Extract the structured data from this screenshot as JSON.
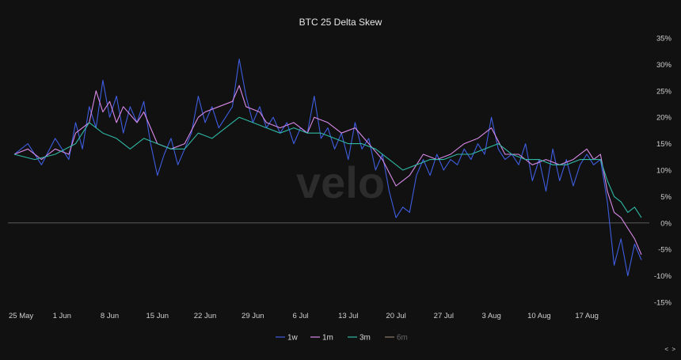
{
  "chart_data": {
    "type": "line",
    "title": "BTC 25 Delta Skew",
    "watermark": "velo",
    "xlabel": "",
    "ylabel": "",
    "ylim": [
      -15,
      35
    ],
    "y_ticks": [
      "35%",
      "30%",
      "25%",
      "20%",
      "15%",
      "10%",
      "5%",
      "0%",
      "-5%",
      "-10%",
      "-15%"
    ],
    "y_tick_values": [
      35,
      30,
      25,
      20,
      15,
      10,
      5,
      0,
      -5,
      -10,
      -15
    ],
    "x_start": "2023-05-25",
    "x_end": "2023-08-25",
    "x_ticks": [
      "25 May",
      "1 Jun",
      "8 Jun",
      "15 Jun",
      "22 Jun",
      "29 Jun",
      "6 Jul",
      "13 Jul",
      "20 Jul",
      "27 Jul",
      "3 Aug",
      "10 Aug",
      "17 Aug"
    ],
    "grid": false,
    "zero_line": true,
    "legend_position": "bottom-center",
    "nav_label": "< >",
    "colors": {
      "1w": "#3f5de0",
      "1m": "#d98ae8",
      "3m": "#2fb8a4",
      "6m": "#8a7a6a"
    },
    "series": [
      {
        "name": "1w",
        "color": "#3f5de0",
        "visible": true,
        "points": [
          [
            "2023-05-25",
            13
          ],
          [
            "2023-05-27",
            15
          ],
          [
            "2023-05-29",
            11
          ],
          [
            "2023-05-31",
            16
          ],
          [
            "2023-06-02",
            12
          ],
          [
            "2023-06-03",
            19
          ],
          [
            "2023-06-04",
            14
          ],
          [
            "2023-06-05",
            22
          ],
          [
            "2023-06-06",
            18
          ],
          [
            "2023-06-07",
            27
          ],
          [
            "2023-06-08",
            20
          ],
          [
            "2023-06-09",
            24
          ],
          [
            "2023-06-10",
            17
          ],
          [
            "2023-06-11",
            22
          ],
          [
            "2023-06-12",
            19
          ],
          [
            "2023-06-13",
            23
          ],
          [
            "2023-06-14",
            15
          ],
          [
            "2023-06-15",
            9
          ],
          [
            "2023-06-16",
            13
          ],
          [
            "2023-06-17",
            16
          ],
          [
            "2023-06-18",
            11
          ],
          [
            "2023-06-19",
            14
          ],
          [
            "2023-06-20",
            17
          ],
          [
            "2023-06-21",
            24
          ],
          [
            "2023-06-22",
            19
          ],
          [
            "2023-06-23",
            22
          ],
          [
            "2023-06-24",
            18
          ],
          [
            "2023-06-25",
            20
          ],
          [
            "2023-06-26",
            22
          ],
          [
            "2023-06-27",
            31
          ],
          [
            "2023-06-28",
            24
          ],
          [
            "2023-06-29",
            19
          ],
          [
            "2023-06-30",
            22
          ],
          [
            "2023-07-01",
            18
          ],
          [
            "2023-07-02",
            20
          ],
          [
            "2023-07-03",
            17
          ],
          [
            "2023-07-04",
            19
          ],
          [
            "2023-07-05",
            15
          ],
          [
            "2023-07-06",
            18
          ],
          [
            "2023-07-07",
            17
          ],
          [
            "2023-07-08",
            24
          ],
          [
            "2023-07-09",
            16
          ],
          [
            "2023-07-10",
            18
          ],
          [
            "2023-07-11",
            14
          ],
          [
            "2023-07-12",
            17
          ],
          [
            "2023-07-13",
            12
          ],
          [
            "2023-07-14",
            19
          ],
          [
            "2023-07-15",
            14
          ],
          [
            "2023-07-16",
            16
          ],
          [
            "2023-07-17",
            10
          ],
          [
            "2023-07-18",
            13
          ],
          [
            "2023-07-19",
            6
          ],
          [
            "2023-07-20",
            1
          ],
          [
            "2023-07-21",
            3
          ],
          [
            "2023-07-22",
            2
          ],
          [
            "2023-07-23",
            9
          ],
          [
            "2023-07-24",
            12
          ],
          [
            "2023-07-25",
            9
          ],
          [
            "2023-07-26",
            13
          ],
          [
            "2023-07-27",
            10
          ],
          [
            "2023-07-28",
            12
          ],
          [
            "2023-07-29",
            11
          ],
          [
            "2023-07-30",
            14
          ],
          [
            "2023-07-31",
            12
          ],
          [
            "2023-08-01",
            15
          ],
          [
            "2023-08-02",
            13
          ],
          [
            "2023-08-03",
            20
          ],
          [
            "2023-08-04",
            14
          ],
          [
            "2023-08-05",
            12
          ],
          [
            "2023-08-06",
            13
          ],
          [
            "2023-08-07",
            11
          ],
          [
            "2023-08-08",
            15
          ],
          [
            "2023-08-09",
            8
          ],
          [
            "2023-08-10",
            12
          ],
          [
            "2023-08-11",
            6
          ],
          [
            "2023-08-12",
            14
          ],
          [
            "2023-08-13",
            8
          ],
          [
            "2023-08-14",
            12
          ],
          [
            "2023-08-15",
            7
          ],
          [
            "2023-08-16",
            11
          ],
          [
            "2023-08-17",
            13
          ],
          [
            "2023-08-18",
            11
          ],
          [
            "2023-08-19",
            12
          ],
          [
            "2023-08-20",
            4
          ],
          [
            "2023-08-21",
            -8
          ],
          [
            "2023-08-22",
            -3
          ],
          [
            "2023-08-23",
            -10
          ],
          [
            "2023-08-24",
            -4
          ],
          [
            "2023-08-25",
            -7
          ]
        ]
      },
      {
        "name": "1m",
        "color": "#d98ae8",
        "visible": true,
        "points": [
          [
            "2023-05-25",
            13
          ],
          [
            "2023-05-27",
            14
          ],
          [
            "2023-05-29",
            12
          ],
          [
            "2023-05-31",
            14
          ],
          [
            "2023-06-02",
            13
          ],
          [
            "2023-06-03",
            17
          ],
          [
            "2023-06-05",
            19
          ],
          [
            "2023-06-06",
            25
          ],
          [
            "2023-06-07",
            21
          ],
          [
            "2023-06-08",
            23
          ],
          [
            "2023-06-09",
            19
          ],
          [
            "2023-06-10",
            22
          ],
          [
            "2023-06-12",
            19
          ],
          [
            "2023-06-13",
            21
          ],
          [
            "2023-06-15",
            15
          ],
          [
            "2023-06-17",
            14
          ],
          [
            "2023-06-19",
            15
          ],
          [
            "2023-06-21",
            20
          ],
          [
            "2023-06-22",
            21
          ],
          [
            "2023-06-24",
            22
          ],
          [
            "2023-06-26",
            23
          ],
          [
            "2023-06-27",
            26
          ],
          [
            "2023-06-28",
            22
          ],
          [
            "2023-06-30",
            21
          ],
          [
            "2023-07-01",
            19
          ],
          [
            "2023-07-03",
            18
          ],
          [
            "2023-07-05",
            19
          ],
          [
            "2023-07-07",
            17
          ],
          [
            "2023-07-08",
            20
          ],
          [
            "2023-07-10",
            19
          ],
          [
            "2023-07-12",
            17
          ],
          [
            "2023-07-14",
            18
          ],
          [
            "2023-07-16",
            15
          ],
          [
            "2023-07-18",
            12
          ],
          [
            "2023-07-20",
            7
          ],
          [
            "2023-07-22",
            9
          ],
          [
            "2023-07-24",
            13
          ],
          [
            "2023-07-26",
            12
          ],
          [
            "2023-07-28",
            13
          ],
          [
            "2023-07-30",
            15
          ],
          [
            "2023-08-01",
            16
          ],
          [
            "2023-08-03",
            18
          ],
          [
            "2023-08-05",
            13
          ],
          [
            "2023-08-07",
            13
          ],
          [
            "2023-08-09",
            11
          ],
          [
            "2023-08-11",
            12
          ],
          [
            "2023-08-13",
            11
          ],
          [
            "2023-08-15",
            12
          ],
          [
            "2023-08-17",
            14
          ],
          [
            "2023-08-18",
            12
          ],
          [
            "2023-08-19",
            13
          ],
          [
            "2023-08-20",
            6
          ],
          [
            "2023-08-21",
            2
          ],
          [
            "2023-08-22",
            1
          ],
          [
            "2023-08-23",
            -1
          ],
          [
            "2023-08-24",
            -3
          ],
          [
            "2023-08-25",
            -6
          ]
        ]
      },
      {
        "name": "3m",
        "color": "#2fb8a4",
        "visible": true,
        "points": [
          [
            "2023-05-25",
            13
          ],
          [
            "2023-05-28",
            12
          ],
          [
            "2023-05-31",
            13
          ],
          [
            "2023-06-03",
            15
          ],
          [
            "2023-06-05",
            19
          ],
          [
            "2023-06-07",
            17
          ],
          [
            "2023-06-09",
            16
          ],
          [
            "2023-06-11",
            14
          ],
          [
            "2023-06-13",
            16
          ],
          [
            "2023-06-15",
            15
          ],
          [
            "2023-06-17",
            14
          ],
          [
            "2023-06-19",
            14
          ],
          [
            "2023-06-21",
            17
          ],
          [
            "2023-06-23",
            16
          ],
          [
            "2023-06-25",
            18
          ],
          [
            "2023-06-27",
            20
          ],
          [
            "2023-06-29",
            19
          ],
          [
            "2023-07-01",
            18
          ],
          [
            "2023-07-03",
            17
          ],
          [
            "2023-07-05",
            18
          ],
          [
            "2023-07-07",
            17
          ],
          [
            "2023-07-09",
            17
          ],
          [
            "2023-07-11",
            16
          ],
          [
            "2023-07-13",
            15
          ],
          [
            "2023-07-15",
            15
          ],
          [
            "2023-07-17",
            14
          ],
          [
            "2023-07-19",
            12
          ],
          [
            "2023-07-21",
            10
          ],
          [
            "2023-07-23",
            11
          ],
          [
            "2023-07-25",
            12
          ],
          [
            "2023-07-27",
            12
          ],
          [
            "2023-07-29",
            13
          ],
          [
            "2023-07-31",
            13
          ],
          [
            "2023-08-02",
            14
          ],
          [
            "2023-08-04",
            15
          ],
          [
            "2023-08-06",
            13
          ],
          [
            "2023-08-08",
            12
          ],
          [
            "2023-08-10",
            12
          ],
          [
            "2023-08-12",
            11
          ],
          [
            "2023-08-14",
            11
          ],
          [
            "2023-08-16",
            12
          ],
          [
            "2023-08-18",
            12
          ],
          [
            "2023-08-19",
            12
          ],
          [
            "2023-08-20",
            8
          ],
          [
            "2023-08-21",
            5
          ],
          [
            "2023-08-22",
            4
          ],
          [
            "2023-08-23",
            2
          ],
          [
            "2023-08-24",
            3
          ],
          [
            "2023-08-25",
            1
          ]
        ]
      },
      {
        "name": "6m",
        "color": "#8a7a6a",
        "visible": false,
        "points": []
      }
    ]
  }
}
